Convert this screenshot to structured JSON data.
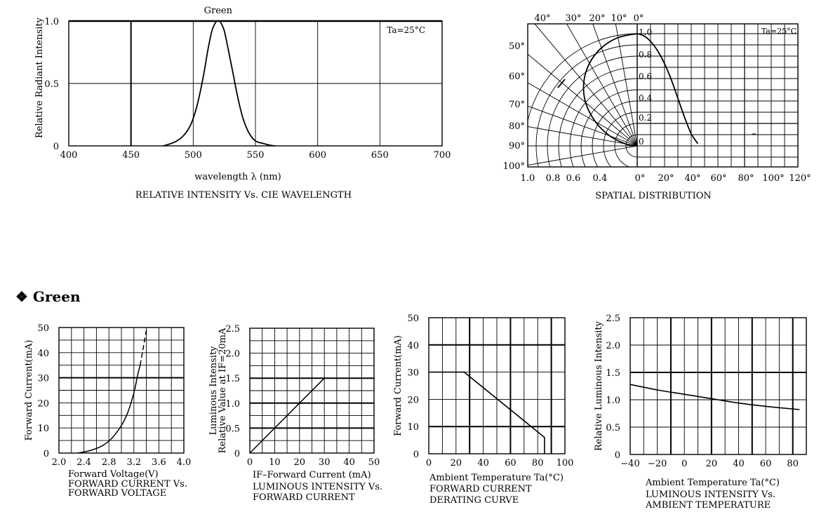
{
  "section_heading": "❖ Green",
  "chart_data": [
    {
      "id": "spectrum",
      "type": "line",
      "title": "RELATIVE INTENSITY Vs. CIE WAVELENGTH",
      "xlabel": "wavelength λ (nm)",
      "ylabel": "Relative Radiant Intensity",
      "annotation": "Ta=25°C",
      "series_label": "Green",
      "xlim": [
        400,
        700
      ],
      "ylim": [
        0,
        1.0
      ],
      "xticks": [
        "400",
        "450",
        "500",
        "550",
        "600",
        "650",
        "700"
      ],
      "yticks": [
        "0",
        "0.5",
        "1.0"
      ],
      "series": [
        {
          "x": [
            476,
            485,
            492,
            498,
            503,
            508,
            512,
            515,
            518,
            520,
            522,
            525,
            528,
            532,
            536,
            540,
            545,
            550,
            556,
            562,
            566
          ],
          "y": [
            0,
            0.03,
            0.08,
            0.17,
            0.32,
            0.55,
            0.78,
            0.92,
            0.99,
            1.0,
            0.99,
            0.92,
            0.78,
            0.58,
            0.38,
            0.22,
            0.1,
            0.04,
            0.02,
            0.005,
            0
          ]
        }
      ]
    },
    {
      "id": "spatial",
      "type": "polar",
      "title": "SPATIAL DISTRIBUTION",
      "annotation": "Ta=25°C",
      "angle_labels_top": [
        "40°",
        "30°",
        "20°",
        "10°",
        "0°"
      ],
      "angle_labels_left": [
        "50°",
        "60°",
        "70°",
        "80°",
        "90°",
        "100°"
      ],
      "radial_labels": [
        "1.0",
        "0.8",
        "0.6",
        "0.4",
        "0.2",
        "0"
      ],
      "bottom_left_labels": [
        "1.0",
        "0.8",
        "0.6",
        "0.4"
      ],
      "bottom_right_labels": [
        "0°",
        "20°",
        "40°",
        "60°",
        "80°",
        "100°",
        "120°"
      ],
      "angles_deg": [
        0,
        10,
        20,
        30,
        40,
        50,
        60,
        70,
        80,
        90
      ],
      "relative_intensity": [
        1.0,
        0.98,
        0.93,
        0.85,
        0.74,
        0.6,
        0.43,
        0.26,
        0.11,
        0.02
      ]
    },
    {
      "id": "fwd_voltage",
      "type": "line",
      "title_lines": [
        "FORWARD CURRENT Vs.",
        "FORWARD VOLTAGE"
      ],
      "xlabel": "Forward Voltage(V)",
      "ylabel": "Forward Current(mA)",
      "xlim": [
        2.0,
        4.0
      ],
      "ylim": [
        0,
        50
      ],
      "xticks": [
        "2.0",
        "2.4",
        "2.8",
        "3.2",
        "3.6",
        "4.0"
      ],
      "yticks": [
        "0",
        "10",
        "20",
        "30",
        "40",
        "50"
      ],
      "solid": {
        "x": [
          2.3,
          2.5,
          2.7,
          2.85,
          3.0,
          3.1,
          3.2,
          3.26,
          3.3
        ],
        "y": [
          0,
          1,
          3,
          6,
          11,
          16,
          24,
          31,
          35
        ]
      },
      "dashed": {
        "x": [
          3.3,
          3.35,
          3.4
        ],
        "y": [
          35,
          42,
          49
        ]
      }
    },
    {
      "id": "lum_current",
      "type": "line",
      "title_lines": [
        "LUMINOUS INTENSITY Vs.",
        "FORWARD CURRENT"
      ],
      "xlabel": "IF–Forward Current (mA)",
      "ylabel_lines": [
        "Luminous Intensity",
        "Relative Value at IF=20mA"
      ],
      "xlim": [
        0,
        50
      ],
      "ylim": [
        0,
        2.5
      ],
      "xticks": [
        "0",
        "10",
        "20",
        "30",
        "40",
        "50"
      ],
      "yticks": [
        "0",
        "0.5",
        "1.0",
        "1.5",
        "2.0",
        "2.5"
      ],
      "series": [
        {
          "x": [
            0,
            30
          ],
          "y": [
            0,
            1.5
          ]
        }
      ]
    },
    {
      "id": "derating",
      "type": "line",
      "title_lines": [
        "FORWARD CURRENT",
        "DERATING CURVE"
      ],
      "xlabel": "Ambient Temperature Ta(°C)",
      "ylabel": "Forward Current(mA)",
      "xlim": [
        0,
        100
      ],
      "ylim": [
        0,
        50
      ],
      "xticks": [
        "0",
        "20",
        "40",
        "60",
        "80",
        "100"
      ],
      "yticks": [
        "0",
        "10",
        "20",
        "30",
        "40",
        "50"
      ],
      "series": [
        {
          "x": [
            0,
            26,
            85,
            85
          ],
          "y": [
            30,
            30,
            6,
            0
          ]
        }
      ]
    },
    {
      "id": "lum_temp",
      "type": "line",
      "title_lines": [
        "LUMINOUS INTENSITY Vs.",
        "AMBIENT TEMPERATURE"
      ],
      "xlabel": "Ambient Temperature Ta(°C)",
      "ylabel": "Relative Luminous Intensity",
      "xlim": [
        -40,
        90
      ],
      "ylim": [
        0,
        2.5
      ],
      "xticks": [
        "−40",
        "−20",
        "0",
        "20",
        "40",
        "60",
        "80"
      ],
      "yticks": [
        "0",
        "0.5",
        "1.0",
        "1.5",
        "2.0",
        "2.5"
      ],
      "series": [
        {
          "x": [
            -40,
            -20,
            0,
            20,
            40,
            60,
            85
          ],
          "y": [
            1.28,
            1.18,
            1.1,
            1.02,
            0.94,
            0.88,
            0.82
          ]
        }
      ]
    }
  ]
}
